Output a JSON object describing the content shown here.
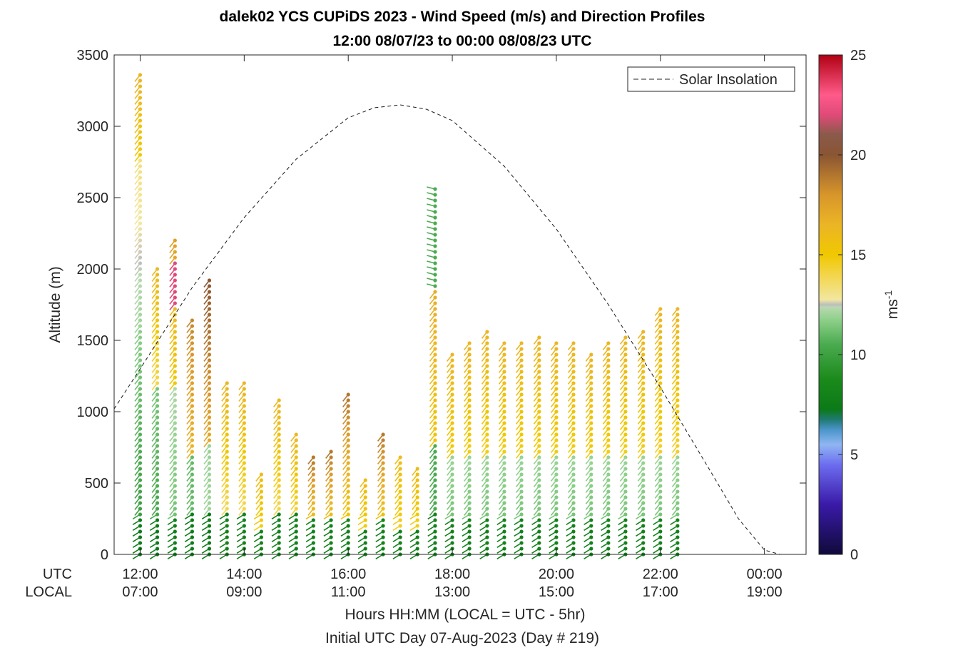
{
  "chart_data": {
    "type": "scatter",
    "title": "dalek02 YCS CUPiDS 2023 - Wind Speed (m/s) and Direction Profiles",
    "subtitle": "12:00 08/07/23 to 00:00 08/08/23  UTC",
    "ylabel": "Altitude (m)",
    "xlabel": "Hours HH:MM  (LOCAL = UTC - 5hr)",
    "xlabel2": "Initial UTC Day 07-Aug-2023 (Day # 219)",
    "ylim": [
      0,
      3500
    ],
    "y_ticks": [
      "0",
      "500",
      "1000",
      "1500",
      "2000",
      "2500",
      "3000",
      "3500"
    ],
    "x_ticks_hours": [
      12,
      14,
      16,
      18,
      20,
      22,
      24
    ],
    "x_ticks_utc": [
      "12:00",
      "14:00",
      "16:00",
      "18:00",
      "20:00",
      "22:00",
      "00:00"
    ],
    "x_ticks_local": [
      "07:00",
      "09:00",
      "11:00",
      "13:00",
      "15:00",
      "17:00",
      "19:00"
    ],
    "x_row_labels": {
      "utc": "UTC",
      "local": "LOCAL"
    },
    "grid": false,
    "legend": {
      "position": "top-right",
      "entries": [
        "Solar Insolation"
      ]
    },
    "colorbar": {
      "label": "ms",
      "label_exp": "-1",
      "range": [
        0,
        25
      ],
      "ticks": [
        "0",
        "5",
        "10",
        "15",
        "20",
        "25"
      ]
    },
    "profiles": [
      {
        "t": 12.0,
        "top": 3380,
        "kind": "A"
      },
      {
        "t": 12.33,
        "top": 2010,
        "kind": "B"
      },
      {
        "t": 12.67,
        "top": 2220,
        "kind": "C"
      },
      {
        "t": 13.0,
        "top": 1650,
        "kind": "D"
      },
      {
        "t": 13.33,
        "top": 1920,
        "kind": "E"
      },
      {
        "t": 13.67,
        "top": 1230,
        "kind": "F"
      },
      {
        "t": 14.0,
        "top": 1200,
        "kind": "F"
      },
      {
        "t": 14.33,
        "top": 580,
        "kind": "G"
      },
      {
        "t": 14.67,
        "top": 1110,
        "kind": "F"
      },
      {
        "t": 15.0,
        "top": 870,
        "kind": "F"
      },
      {
        "t": 15.33,
        "top": 690,
        "kind": "H"
      },
      {
        "t": 15.67,
        "top": 730,
        "kind": "H"
      },
      {
        "t": 16.0,
        "top": 1120,
        "kind": "H"
      },
      {
        "t": 16.33,
        "top": 520,
        "kind": "G"
      },
      {
        "t": 16.67,
        "top": 860,
        "kind": "H"
      },
      {
        "t": 17.0,
        "top": 690,
        "kind": "G"
      },
      {
        "t": 17.33,
        "top": 620,
        "kind": "G"
      },
      {
        "t": 17.67,
        "top": 2560,
        "kind": "I"
      },
      {
        "t": 18.0,
        "top": 1410,
        "kind": "J"
      },
      {
        "t": 18.33,
        "top": 1500,
        "kind": "J"
      },
      {
        "t": 18.67,
        "top": 1580,
        "kind": "J"
      },
      {
        "t": 19.0,
        "top": 1490,
        "kind": "J"
      },
      {
        "t": 19.33,
        "top": 1490,
        "kind": "J"
      },
      {
        "t": 19.67,
        "top": 1530,
        "kind": "J"
      },
      {
        "t": 20.0,
        "top": 1490,
        "kind": "J"
      },
      {
        "t": 20.33,
        "top": 1490,
        "kind": "J"
      },
      {
        "t": 20.67,
        "top": 1410,
        "kind": "J"
      },
      {
        "t": 21.0,
        "top": 1490,
        "kind": "J"
      },
      {
        "t": 21.33,
        "top": 1550,
        "kind": "J"
      },
      {
        "t": 21.67,
        "top": 1580,
        "kind": "J"
      },
      {
        "t": 22.0,
        "top": 1740,
        "kind": "J"
      },
      {
        "t": 22.33,
        "top": 1740,
        "kind": "J"
      }
    ],
    "solar_insolation": {
      "x": [
        11.5,
        12.0,
        13.0,
        14.0,
        15.0,
        16.0,
        16.5,
        17.0,
        17.5,
        18.0,
        19.0,
        20.0,
        21.0,
        22.0,
        23.0,
        23.5,
        24.0,
        24.3,
        24.6
      ],
      "y": [
        1020,
        1300,
        1870,
        2360,
        2770,
        3060,
        3130,
        3150,
        3120,
        3040,
        2720,
        2280,
        1750,
        1170,
        560,
        250,
        30,
        0,
        0
      ]
    }
  }
}
